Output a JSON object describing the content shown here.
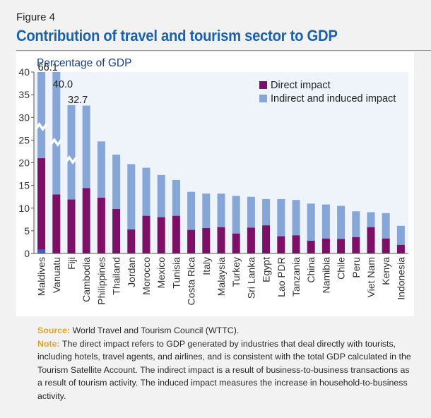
{
  "figure": {
    "label": "Figure 4",
    "title": "Contribution of travel and tourism sector to GDP"
  },
  "colors": {
    "direct": "#7c0f66",
    "indirect": "#86a6d8",
    "plot_bg": "#eef4fa",
    "title": "#1a63ac",
    "ylabel": "#1a3f7a",
    "highlight": "#e1a12a"
  },
  "chart_data": {
    "type": "bar",
    "stacked": true,
    "title": "",
    "ylabel": "Percentage of GDP",
    "xlabel": "",
    "ylim": [
      0,
      40
    ],
    "yticks": [
      0,
      5,
      10,
      15,
      20,
      25,
      30,
      35,
      40
    ],
    "legend_position": "top-right",
    "axis_break": true,
    "categories": [
      "Maldives",
      "Vanuatu",
      "Fiji",
      "Cambodia",
      "Philippines",
      "Thailand",
      "Jordan",
      "Morocco",
      "Mexico",
      "Tunisia",
      "Costa Rica",
      "Italy",
      "Malaysia",
      "Turkey",
      "Sri Lanka",
      "Egypt",
      "Lao PDR",
      "Tanzania",
      "China",
      "Namibia",
      "Chile",
      "Peru",
      "Viet Nam",
      "Kenya",
      "Indonesia"
    ],
    "series": [
      {
        "name": "Direct impact",
        "values": [
          21.0,
          13.0,
          11.9,
          14.4,
          12.3,
          9.8,
          5.3,
          8.3,
          8.0,
          8.3,
          5.2,
          5.6,
          5.8,
          4.4,
          5.7,
          6.2,
          3.8,
          4.0,
          2.8,
          3.3,
          3.2,
          3.6,
          5.8,
          3.3,
          1.9
        ]
      },
      {
        "name": "Indirect and induced impact",
        "values": [
          45.1,
          27.0,
          20.8,
          18.2,
          12.4,
          12.0,
          14.4,
          10.6,
          9.3,
          7.9,
          8.4,
          7.6,
          7.4,
          8.3,
          6.8,
          5.8,
          8.2,
          7.8,
          8.2,
          7.5,
          7.3,
          5.7,
          3.3,
          5.6,
          4.2
        ]
      }
    ],
    "totals": [
      66.1,
      40.0,
      32.7,
      32.6,
      24.7,
      21.8,
      19.7,
      18.9,
      17.3,
      16.2,
      13.6,
      13.2,
      13.2,
      12.7,
      12.5,
      12.0,
      12.0,
      11.8,
      11.0,
      10.8,
      10.5,
      9.3,
      9.1,
      8.9,
      6.1
    ],
    "broken_bar_labels": [
      {
        "index": 0,
        "text": "66.1"
      },
      {
        "index": 1,
        "text": "40.0"
      },
      {
        "index": 2,
        "text": "32.7"
      }
    ]
  },
  "notes": {
    "source_label": "Source:",
    "source_text": " World Travel and Tourism Council (WTTC).",
    "note_label": "Note:",
    "note_text": " The direct impact refers to GDP generated by industries that deal directly with tourists, including hotels, travel agents, and airlines, and is consistent with the total GDP calculated in the Tourism Satellite Account. The indirect impact is a result of business-to-business transactions as a result of tourism activity. The induced impact measures the increase in household-to-business activity."
  }
}
